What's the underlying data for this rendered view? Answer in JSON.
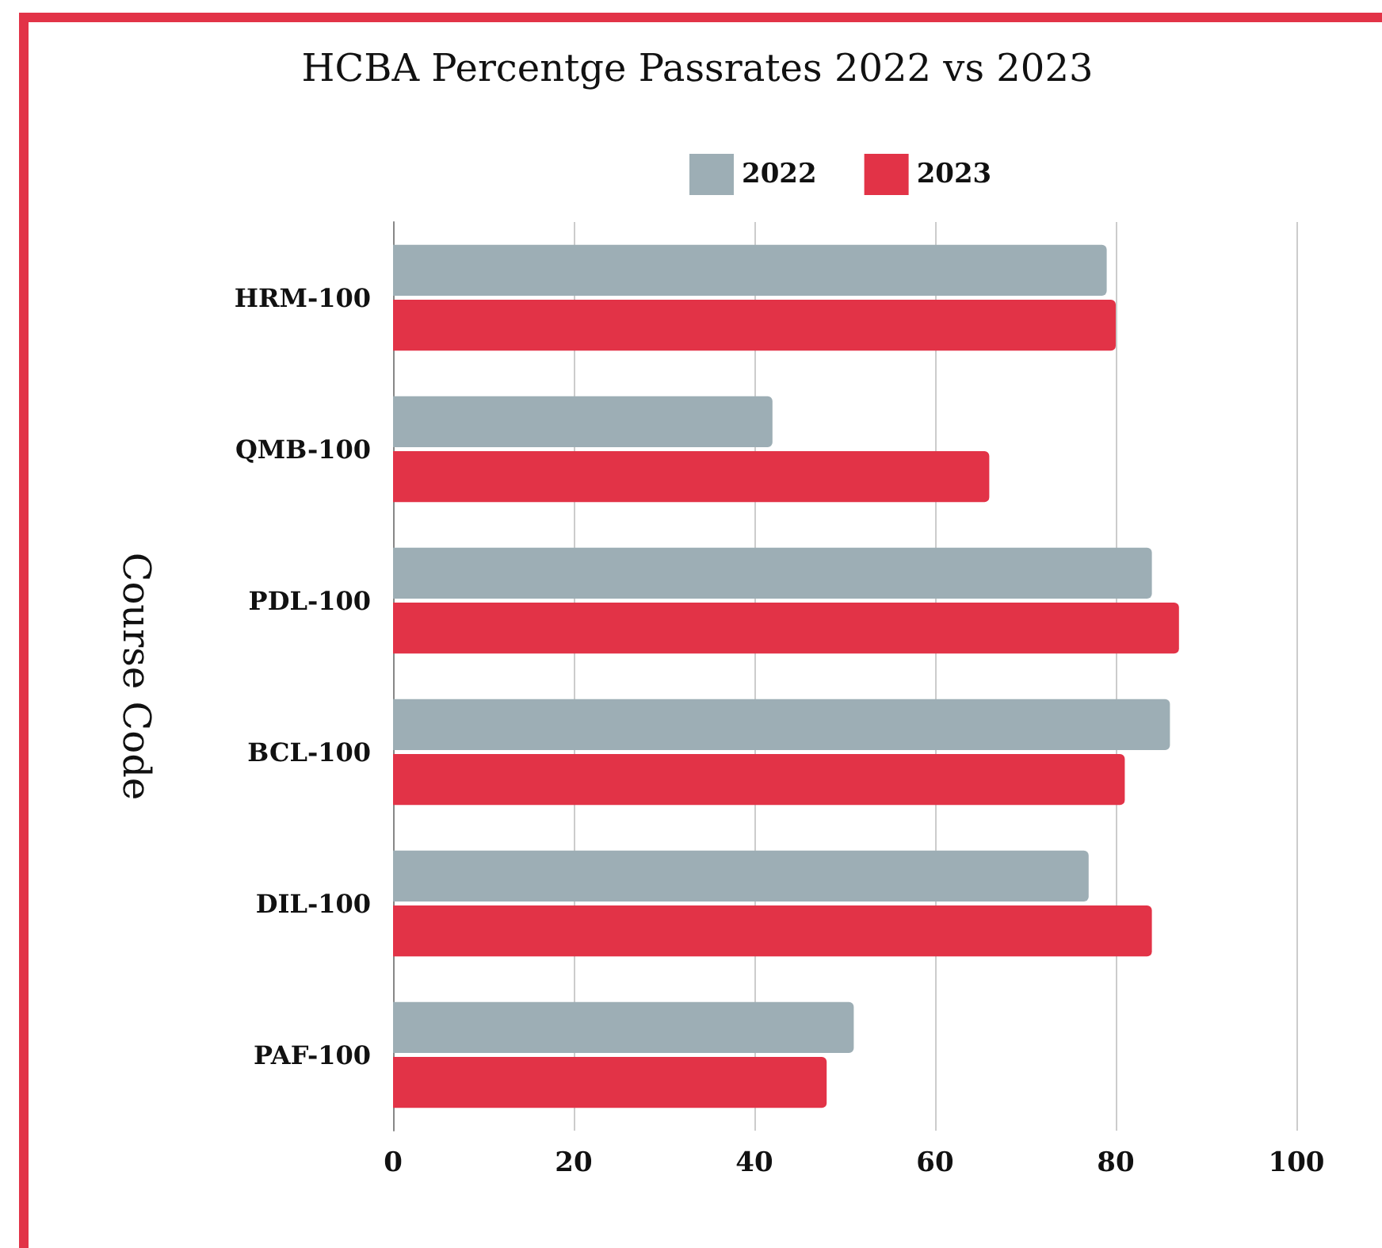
{
  "chart_data": {
    "type": "bar",
    "orientation": "horizontal",
    "title": "HCBA Percentge Passrates 2022 vs 2023",
    "ylabel": "Course Code",
    "categories": [
      "HRM-100",
      "QMB-100",
      "PDL-100",
      "BCL-100",
      "DIL-100",
      "PAF-100"
    ],
    "series": [
      {
        "name": "2022",
        "color": "#9daeb5",
        "values": [
          79,
          42,
          84,
          86,
          77,
          51
        ]
      },
      {
        "name": "2023",
        "color": "#e23347",
        "values": [
          80,
          66,
          87,
          81,
          84,
          48
        ]
      }
    ],
    "xlim": [
      0,
      100
    ],
    "xticks": [
      0,
      20,
      40,
      60,
      80,
      100
    ],
    "grid": "x",
    "legend": "top"
  }
}
